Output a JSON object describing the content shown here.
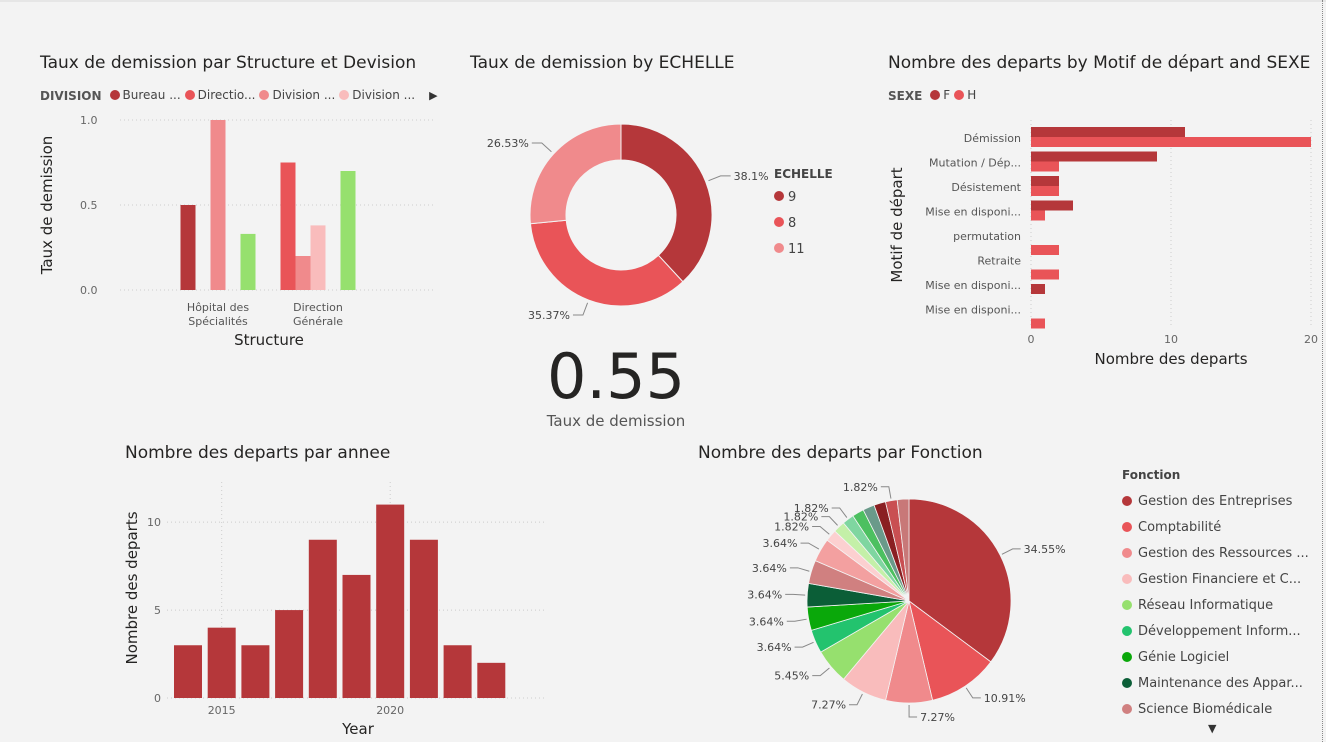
{
  "charts": {
    "structure": {
      "title": "Taux de demission par Structure et Devision",
      "legend_header": "DIVISION",
      "legend": [
        {
          "label": "Bureau ...",
          "color": "#b5373a"
        },
        {
          "label": "Directio...",
          "color": "#e95458"
        },
        {
          "label": "Division ...",
          "color": "#f08a8c"
        },
        {
          "label": "Division ...",
          "color": "#f9bcbc"
        }
      ],
      "more_icon": "chevron-right-icon"
    },
    "echelle": {
      "title": "Taux de demission by ECHELLE",
      "legend_header": "ECHELLE",
      "legend": [
        {
          "label": "9",
          "color": "#b5373a"
        },
        {
          "label": "8",
          "color": "#e95458"
        },
        {
          "label": "11",
          "color": "#f08a8c"
        }
      ]
    },
    "motif": {
      "title": "Nombre des departs by Motif de départ and SEXE",
      "legend_header": "SEXE",
      "legend": [
        {
          "label": "F",
          "color": "#b5373a"
        },
        {
          "label": "H",
          "color": "#e95458"
        }
      ]
    },
    "annee": {
      "title": "Nombre des departs par annee"
    },
    "fonction": {
      "title": "Nombre des departs par Fonction",
      "legend_header": "Fonction",
      "legend": [
        {
          "label": "Gestion des Entreprises",
          "color": "#b5373a"
        },
        {
          "label": "Comptabilité",
          "color": "#e95458"
        },
        {
          "label": "Gestion des Ressources ...",
          "color": "#f08a8c"
        },
        {
          "label": "Gestion Financiere et C...",
          "color": "#f9bcbc"
        },
        {
          "label": "Réseau Informatique",
          "color": "#96e06e"
        },
        {
          "label": "Développement Inform...",
          "color": "#23c36e"
        },
        {
          "label": "Génie Logiciel",
          "color": "#0aa80a"
        },
        {
          "label": "Maintenance des Appar...",
          "color": "#0b5e37"
        },
        {
          "label": "Science Biomédicale",
          "color": "#d08080"
        }
      ],
      "more_icon": "chevron-down-icon"
    }
  },
  "kpi": {
    "value": "0.55",
    "label": "Taux de demission"
  },
  "chart_data": [
    {
      "type": "bar",
      "title": "Taux de demission par Structure et Devision",
      "xlabel": "Structure",
      "ylabel": "Taux de demission",
      "ylim": [
        0,
        1
      ],
      "yticks": [
        "0.0",
        "0.5",
        "1.0"
      ],
      "categories": [
        "Hôpital des Spécialités",
        "Direction Générale"
      ],
      "category_lines": [
        [
          "Hôpital des",
          "Spécialités"
        ],
        [
          "Direction",
          "Générale"
        ]
      ],
      "bars": [
        {
          "category": "Hôpital des Spécialités",
          "value": 0.5,
          "color": "#b5373a"
        },
        {
          "category": "Hôpital des Spécialités",
          "value": 1.0,
          "color": "#f08a8c"
        },
        {
          "category": "Hôpital des Spécialités",
          "value": 0.33,
          "color": "#96e06e"
        },
        {
          "category": "Direction Générale",
          "value": 0.75,
          "color": "#e95458"
        },
        {
          "category": "Direction Générale",
          "value": 0.2,
          "color": "#f08a8c"
        },
        {
          "category": "Direction Générale",
          "value": 0.38,
          "color": "#f9bcbc"
        },
        {
          "category": "Direction Générale",
          "value": 0.7,
          "color": "#96e06e"
        }
      ]
    },
    {
      "type": "pie",
      "donut": true,
      "title": "Taux de demission by ECHELLE",
      "slices": [
        {
          "label": "9",
          "value": 38.1,
          "text": "38.1%",
          "color": "#b5373a"
        },
        {
          "label": "8",
          "value": 35.37,
          "text": "35.37%",
          "color": "#e95458"
        },
        {
          "label": "11",
          "value": 26.53,
          "text": "26.53%",
          "color": "#f08a8c"
        }
      ]
    },
    {
      "type": "bar",
      "orientation": "horizontal",
      "title": "Nombre des departs by Motif de départ and SEXE",
      "xlabel": "Nombre des departs",
      "ylabel": "Motif de départ",
      "xlim": [
        0,
        20
      ],
      "xticks": [
        "0",
        "10",
        "20"
      ],
      "categories": [
        "Démission",
        "Mutation / Dép...",
        "Désistement",
        "Mise en disponi...",
        "permutation",
        "Retraite",
        "Mise en disponi...",
        "Mise en disponi..."
      ],
      "series": [
        {
          "name": "F",
          "color": "#b5373a",
          "values": [
            11,
            9,
            2,
            3,
            null,
            null,
            1,
            null
          ]
        },
        {
          "name": "H",
          "color": "#e95458",
          "values": [
            20,
            2,
            2,
            1,
            2,
            2,
            null,
            1
          ]
        }
      ]
    },
    {
      "type": "bar",
      "title": "Nombre des departs par annee",
      "xlabel": "Year",
      "ylabel": "Nombre des departs",
      "ylim": [
        0,
        12
      ],
      "yticks": [
        0,
        5,
        10
      ],
      "xticks": [
        2015,
        2020
      ],
      "x": [
        2014,
        2015,
        2016,
        2017,
        2018,
        2019,
        2020,
        2021,
        2022,
        2023
      ],
      "values": [
        3,
        4,
        3,
        5,
        9,
        7,
        11,
        9,
        3,
        2
      ],
      "color": "#b5373a"
    },
    {
      "type": "pie",
      "title": "Nombre des departs par Fonction",
      "slices": [
        {
          "value": 34.55,
          "text": "34.55%",
          "color": "#b5373a"
        },
        {
          "value": 10.91,
          "text": "10.91%",
          "color": "#e95458"
        },
        {
          "value": 7.27,
          "text": "7.27%",
          "color": "#f08a8c"
        },
        {
          "value": 7.27,
          "text": "7.27%",
          "color": "#f9bcbc"
        },
        {
          "value": 5.45,
          "text": "5.45%",
          "color": "#96e06e"
        },
        {
          "value": 3.64,
          "text": "3.64%",
          "color": "#23c36e"
        },
        {
          "value": 3.64,
          "text": "3.64%",
          "color": "#0aa80a"
        },
        {
          "value": 3.64,
          "text": "3.64%",
          "color": "#0b5e37"
        },
        {
          "value": 3.64,
          "text": "3.64%",
          "color": "#d08080"
        },
        {
          "value": 3.64,
          "text": "3.64%",
          "color": "#f3a0a0"
        },
        {
          "value": 1.82,
          "text": "1.82%",
          "color": "#fcd0d0"
        },
        {
          "value": 1.82,
          "text": "1.82%",
          "color": "#c4f0a8"
        },
        {
          "value": 1.82,
          "text": "1.82%",
          "color": "#7fd6a0"
        },
        {
          "value": 1.82,
          "text": "",
          "color": "#4cc060"
        },
        {
          "value": 1.82,
          "text": "",
          "color": "#6a9a8a"
        },
        {
          "value": 1.82,
          "text": "",
          "color": "#8a1f22"
        },
        {
          "value": 1.82,
          "text": "1.82%",
          "color": "#c94f52"
        },
        {
          "value": 1.82,
          "text": "",
          "color": "#c87878"
        }
      ]
    }
  ]
}
